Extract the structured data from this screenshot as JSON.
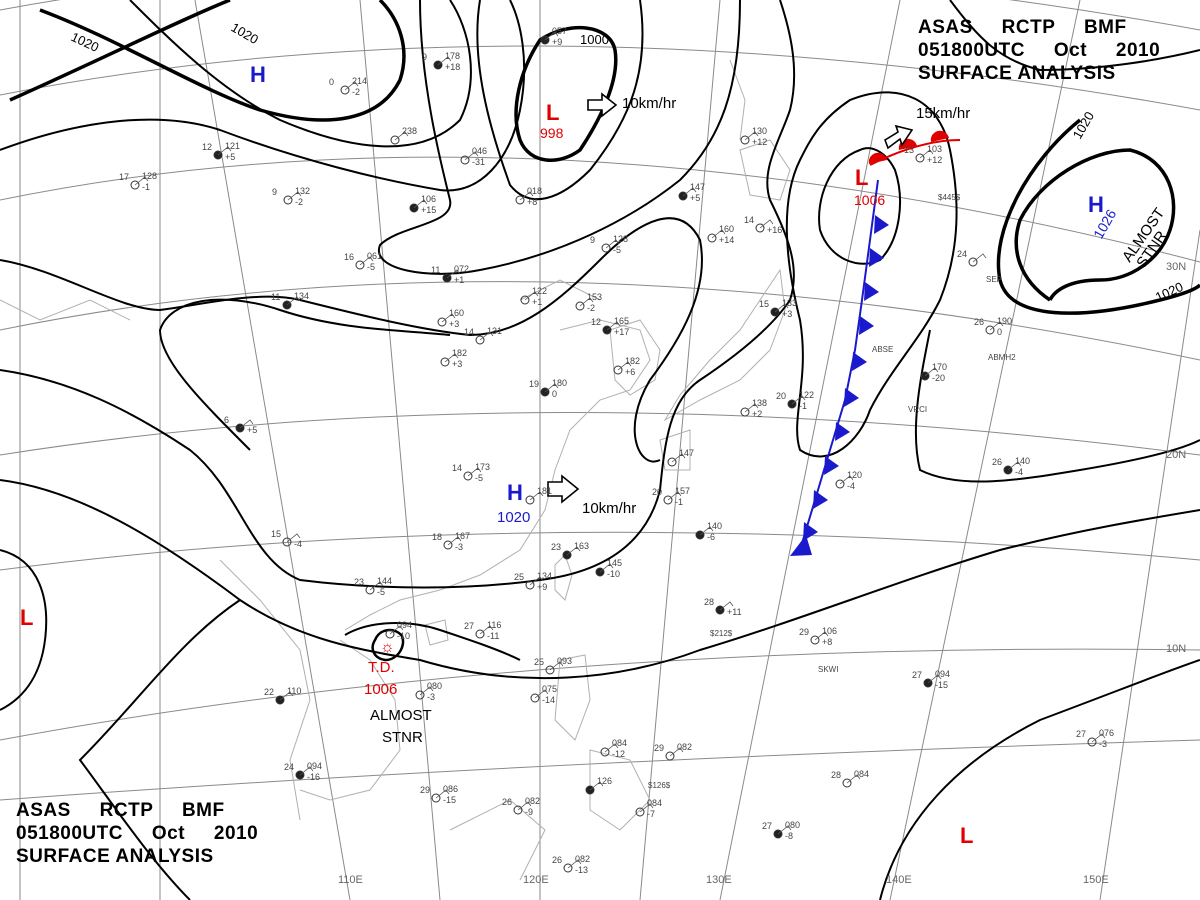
{
  "header": {
    "line1": "ASAS     RCTP     BMF",
    "line2": "051800UTC     Oct     2010",
    "line3": "SURFACE ANALYSIS"
  },
  "footer": {
    "line1": "ASAS     RCTP     BMF",
    "line2": "051800UTC     Oct     2010",
    "line3": "SURFACE ANALYSIS"
  },
  "isobar_labels": [
    "1020",
    "1020",
    "1000",
    "1020",
    "1020"
  ],
  "pressure_centers": [
    {
      "symbol": "H",
      "value": ""
    },
    {
      "symbol": "L",
      "value": "998"
    },
    {
      "symbol": "L",
      "value": "1006"
    },
    {
      "symbol": "H",
      "value": "1026"
    },
    {
      "symbol": "H",
      "value": "1020"
    },
    {
      "symbol": "L",
      "value": ""
    },
    {
      "symbol": "L",
      "value": ""
    }
  ],
  "tropical_depression": {
    "label": "T.D.",
    "value": "1006",
    "note1": "ALMOST",
    "note2": "STNR"
  },
  "stationary_note": {
    "line1": "ALMOST",
    "line2": "STNR"
  },
  "movements": [
    "10km/hr",
    "15km/hr",
    "10km/hr"
  ],
  "lon_labels": [
    "110E",
    "120E",
    "130E",
    "140E",
    "150E"
  ],
  "lat_labels": [
    "30N",
    "20N",
    "10N"
  ],
  "stations": [
    {
      "t": "9",
      "p": "178",
      "d": "+18"
    },
    {
      "t": "0",
      "p": "214",
      "d": "-2"
    },
    {
      "t": "",
      "p": "238",
      "d": ""
    },
    {
      "t": "12",
      "p": "121",
      "d": "+5"
    },
    {
      "t": "17",
      "p": "128",
      "d": "-1"
    },
    {
      "t": "9",
      "p": "132",
      "d": "-2"
    },
    {
      "t": "",
      "p": "106",
      "d": "+15"
    },
    {
      "t": "",
      "p": "046",
      "d": "-31"
    },
    {
      "t": "",
      "p": "018",
      "d": "+8"
    },
    {
      "t": "",
      "p": "147",
      "d": "+5"
    },
    {
      "t": "9",
      "p": "128",
      "d": "-5"
    },
    {
      "t": "16",
      "p": "061",
      "d": "-5"
    },
    {
      "t": "11",
      "p": "072",
      "d": "+1"
    },
    {
      "t": "",
      "p": "122",
      "d": "+1"
    },
    {
      "t": "",
      "p": "153",
      "d": "-2"
    },
    {
      "t": "11",
      "p": "134",
      "d": ""
    },
    {
      "t": "",
      "p": "160",
      "d": "+3"
    },
    {
      "t": "14",
      "p": "131",
      "d": ""
    },
    {
      "t": "12",
      "p": "165",
      "d": "+17"
    },
    {
      "t": "",
      "p": "182",
      "d": "+6"
    },
    {
      "t": "",
      "p": "182",
      "d": "+3"
    },
    {
      "t": "19",
      "p": "180",
      "d": "0"
    },
    {
      "t": "14",
      "p": "173",
      "d": "-5"
    },
    {
      "t": "",
      "p": "181",
      "d": ""
    },
    {
      "t": "6",
      "p": "",
      "d": "+5"
    },
    {
      "t": "18",
      "p": "167",
      "d": "-3"
    },
    {
      "t": "15",
      "p": "",
      "d": "-4"
    },
    {
      "t": "23",
      "p": "163",
      "d": ""
    },
    {
      "t": "23",
      "p": "144",
      "d": "-5"
    },
    {
      "t": "25",
      "p": "134",
      "d": "+9"
    },
    {
      "t": "",
      "p": "145",
      "d": "-10"
    },
    {
      "t": "20",
      "p": "157",
      "d": "-1"
    },
    {
      "t": "",
      "p": "147",
      "d": ""
    },
    {
      "t": "",
      "p": "140",
      "d": "-6"
    },
    {
      "t": "",
      "p": "160",
      "d": "+14"
    },
    {
      "t": "14",
      "p": "",
      "d": "+16"
    },
    {
      "t": "15",
      "p": "133",
      "d": "+3"
    },
    {
      "t": "",
      "p": "130",
      "d": "+12"
    },
    {
      "t": "",
      "p": "138",
      "d": "+2"
    },
    {
      "t": "20",
      "p": "122",
      "d": "-1"
    },
    {
      "t": "",
      "p": "120",
      "d": "-4"
    },
    {
      "t": "13",
      "p": "103",
      "d": "+12"
    },
    {
      "t": "",
      "p": "170",
      "d": "-20"
    },
    {
      "t": "26",
      "p": "190",
      "d": "0"
    },
    {
      "t": "24",
      "p": "",
      "d": ""
    },
    {
      "t": "26",
      "p": "140",
      "d": "-4"
    },
    {
      "t": "",
      "p": "094",
      "d": "-10"
    },
    {
      "t": "27",
      "p": "116",
      "d": "-11"
    },
    {
      "t": "28",
      "p": "",
      "d": "+11"
    },
    {
      "t": "25",
      "p": "093",
      "d": ""
    },
    {
      "t": "",
      "p": "075",
      "d": "-14"
    },
    {
      "t": "22",
      "p": "110",
      "d": ""
    },
    {
      "t": "",
      "p": "080",
      "d": "-3"
    },
    {
      "t": "29",
      "p": "106",
      "d": "+8"
    },
    {
      "t": "27",
      "p": "094",
      "d": "-15"
    },
    {
      "t": "",
      "p": "084",
      "d": "-12"
    },
    {
      "t": "29",
      "p": "082",
      "d": ""
    },
    {
      "t": "24",
      "p": "094",
      "d": "-16"
    },
    {
      "t": "29",
      "p": "086",
      "d": "-15"
    },
    {
      "t": "26",
      "p": "082",
      "d": "-9"
    },
    {
      "t": "",
      "p": "126",
      "d": ""
    },
    {
      "t": "28",
      "p": "084",
      "d": ""
    },
    {
      "t": "",
      "p": "084",
      "d": "-7"
    },
    {
      "t": "27",
      "p": "080",
      "d": "-8"
    },
    {
      "t": "26",
      "p": "082",
      "d": "-13"
    },
    {
      "t": "27",
      "p": "076",
      "d": "-3"
    },
    {
      "t": "",
      "p": "057",
      "d": "+9"
    }
  ],
  "station_ids": [
    "ABSE",
    "ABMH2",
    "VRCI",
    "SKWI",
    "$126$",
    "$212$",
    "$445$",
    "SEP"
  ],
  "colors": {
    "low": "#e00000",
    "high": "#1a1acc",
    "line": "#000000",
    "grid": "#8a8a8a",
    "coast": "#b0b0b0"
  }
}
